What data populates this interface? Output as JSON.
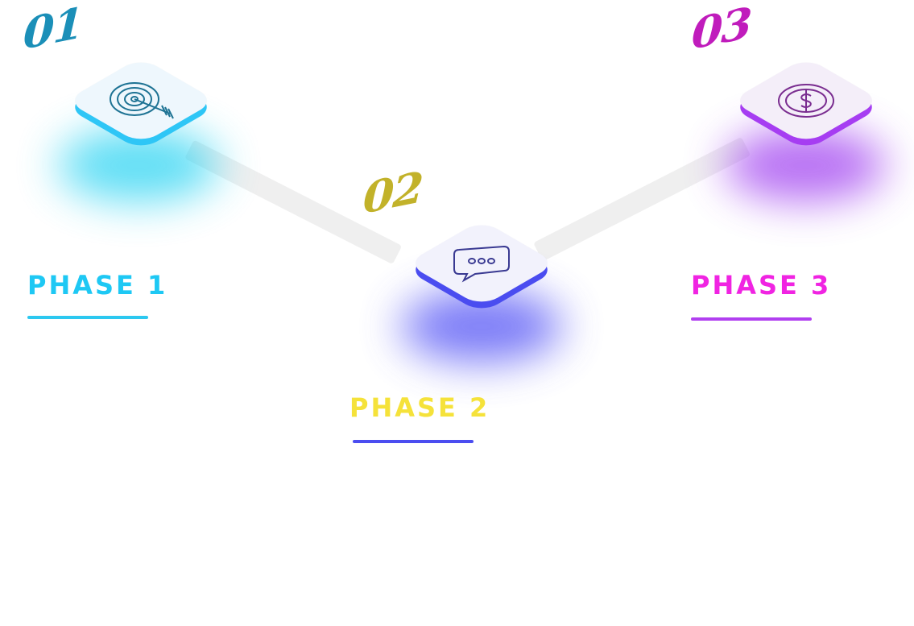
{
  "phases": [
    {
      "number": "01",
      "label": "PHASE 1",
      "icon": "target-arrow-icon",
      "accent": "#2cc8f0",
      "number_color": "#1b8fb8",
      "label_color": "#1ec8f4",
      "glow": "#29d3f2",
      "edge": "#2ec6f6",
      "top": "#eef7fd",
      "stroke": "#1e7394"
    },
    {
      "number": "02",
      "label": "PHASE 2",
      "icon": "chat-bubble-icon",
      "accent": "#4b4df0",
      "number_color": "#c2b22a",
      "label_color": "#f5e23a",
      "glow": "#5050f5",
      "edge": "#4a4cf0",
      "top": "#f2f2fc",
      "stroke": "#3a3a92"
    },
    {
      "number": "03",
      "label": "PHASE 3",
      "icon": "dollar-coin-icon",
      "accent": "#b13ff0",
      "number_color": "#c01cbc",
      "label_color": "#f024e2",
      "glow": "#a040f0",
      "edge": "#a63df2",
      "top": "#f4eef9",
      "stroke": "#7a2d90"
    }
  ]
}
